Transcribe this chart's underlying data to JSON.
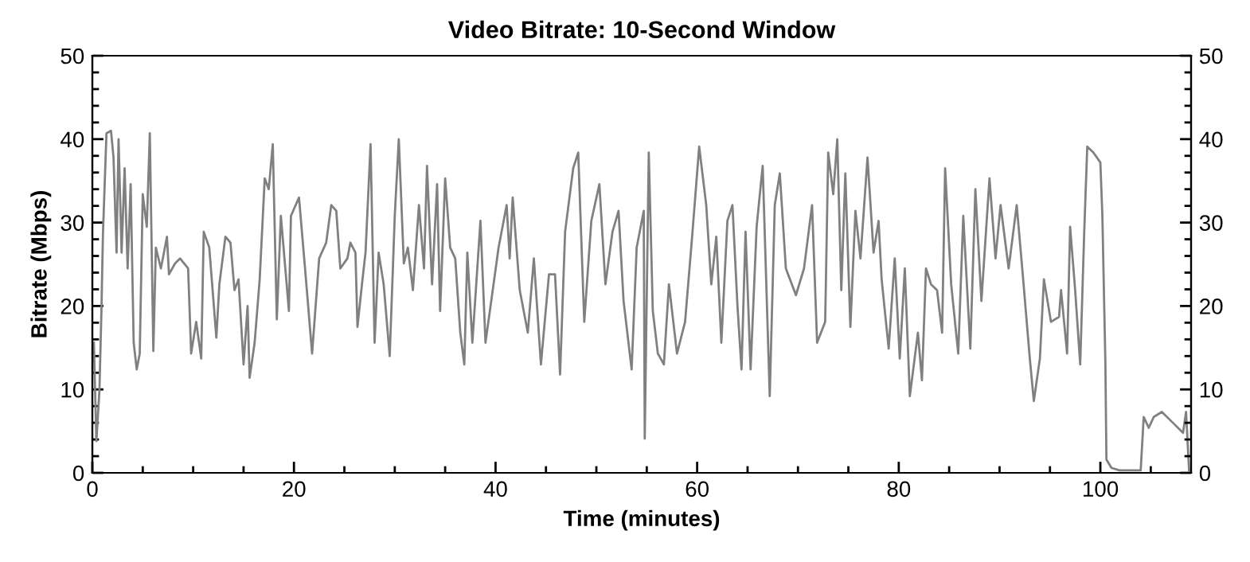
{
  "chart_data": {
    "type": "line",
    "title": "Video Bitrate: 10-Second Window",
    "xlabel": "Time (minutes)",
    "ylabel": "Bitrate (Mbps)",
    "x": [
      0.15,
      0.4,
      0.7,
      0.9,
      1.05,
      1.4,
      1.85,
      2.1,
      2.4,
      2.6,
      2.9,
      3.2,
      3.5,
      3.8,
      4.1,
      4.4,
      4.7,
      5,
      5.4,
      5.7,
      6.05,
      6.3,
      6.8,
      7.4,
      7.6,
      8.2,
      8.7,
      9.5,
      9.8,
      10.3,
      10.8,
      11.05,
      11.6,
      12.3,
      12.6,
      13.2,
      13.7,
      14.1,
      14.5,
      15,
      15.4,
      15.6,
      16.1,
      16.6,
      17.1,
      17.5,
      17.9,
      18.3,
      18.7,
      19.5,
      19.7,
      20.5,
      21.1,
      21.8,
      22.5,
      23.2,
      23.7,
      24.2,
      24.6,
      25.3,
      25.6,
      26.1,
      26.3,
      26.8,
      27.1,
      27.6,
      28,
      28.4,
      28.9,
      29.5,
      30,
      30.4,
      30.9,
      31.3,
      31.8,
      32.4,
      32.9,
      33.2,
      33.7,
      34.2,
      34.5,
      35,
      35.5,
      36,
      36.5,
      36.9,
      37.2,
      37.7,
      38.5,
      39,
      39.8,
      40.3,
      41.1,
      41.4,
      41.7,
      42.4,
      43.2,
      43.8,
      44.5,
      45.3,
      45.9,
      46.4,
      46.9,
      47.7,
      48.2,
      48.8,
      49.5,
      50.3,
      50.9,
      51.6,
      52.2,
      52.7,
      53.5,
      54,
      54.7,
      54.8,
      55.2,
      55.6,
      56.1,
      56.7,
      57.2,
      58,
      58.8,
      59.5,
      60.2,
      60.9,
      61.4,
      61.9,
      62.4,
      63,
      63.5,
      64,
      64.4,
      64.8,
      65.3,
      65.9,
      66.5,
      67.2,
      67.7,
      68.2,
      68.8,
      69.8,
      70.6,
      71.4,
      71.9,
      72.7,
      73,
      73.5,
      73.9,
      74.3,
      74.7,
      75.2,
      75.7,
      76.2,
      76.9,
      77.5,
      78,
      78.3,
      79,
      79.6,
      80.1,
      80.6,
      81.1,
      81.9,
      82.3,
      82.7,
      83.2,
      83.8,
      84.3,
      84.6,
      85.2,
      85.9,
      86.4,
      87.1,
      87.6,
      88.2,
      89,
      89.6,
      90.1,
      90.9,
      91.7,
      92.3,
      93,
      93.4,
      94,
      94.4,
      95.1,
      95.9,
      96.1,
      96.7,
      97,
      97.5,
      98,
      98.4,
      98.7,
      99.3,
      100,
      100.2,
      100.5,
      100.6,
      101.1,
      101.9,
      104,
      104.3,
      104.8,
      105.3,
      106.1,
      107.2,
      108.2,
      108.5,
      108.8
    ],
    "series": [
      {
        "color": "#808080",
        "values": [
          15.6,
          3.8,
          9.8,
          19.4,
          28.6,
          40.7,
          41,
          37.8,
          26.4,
          40,
          26.4,
          36.5,
          24.5,
          34.6,
          15.6,
          12.4,
          14.3,
          33.4,
          29.5,
          40.7,
          14.6,
          27,
          24.5,
          28.3,
          23.8,
          25.1,
          25.7,
          24.5,
          14.3,
          18.1,
          13.7,
          28.9,
          27,
          16.2,
          22.6,
          28.3,
          27.6,
          21.9,
          23.2,
          13,
          20,
          11.4,
          15.6,
          23.2,
          35.3,
          34,
          39.4,
          18.4,
          30.8,
          19.4,
          30.8,
          33,
          24.5,
          14.3,
          25.7,
          27.6,
          32.1,
          31.4,
          24.5,
          25.7,
          27.6,
          26.4,
          17.5,
          23.2,
          26.4,
          39.4,
          15.6,
          26.4,
          22.6,
          14,
          30.8,
          40,
          25.1,
          27,
          21.9,
          32.1,
          24.5,
          36.8,
          22.6,
          34.6,
          19.4,
          35.3,
          27,
          25.7,
          16.8,
          13,
          26.4,
          15.6,
          30.2,
          15.6,
          22.6,
          27,
          32.1,
          25.7,
          33,
          21.9,
          16.8,
          25.7,
          13,
          23.8,
          23.8,
          11.8,
          28.9,
          36.5,
          38.4,
          18.1,
          30.2,
          34.6,
          22.6,
          28.9,
          31.4,
          20.6,
          12.4,
          27,
          31.4,
          4.1,
          38.4,
          19.4,
          14.3,
          13,
          22.6,
          14.3,
          18.1,
          28.3,
          39.1,
          32.1,
          22.6,
          28.3,
          15.6,
          30.2,
          32.1,
          20,
          12.4,
          28.9,
          12.4,
          29.5,
          36.8,
          9.2,
          32.1,
          35.9,
          24.5,
          21.3,
          24.5,
          32.1,
          15.6,
          18.1,
          38.4,
          33.4,
          40,
          21.9,
          35.9,
          17.5,
          31.4,
          25.7,
          37.8,
          26.4,
          30.2,
          23.2,
          14.9,
          25.7,
          13.7,
          24.5,
          9.2,
          16.8,
          11.1,
          24.5,
          22.6,
          21.9,
          16.8,
          36.5,
          22.6,
          14.3,
          30.8,
          14.9,
          34,
          20.6,
          35.3,
          25.7,
          32.1,
          24.5,
          32.1,
          23.8,
          13.7,
          8.6,
          13.7,
          23.2,
          18.1,
          18.7,
          21.9,
          14.3,
          29.5,
          21.9,
          13,
          28.9,
          39.1,
          38.4,
          37.2,
          30.8,
          13,
          1.6,
          0.6,
          0.3,
          0.3,
          6.7,
          5.4,
          6.7,
          7.3,
          6,
          4.8,
          7.3,
          0.3
        ]
      }
    ],
    "xlim": [
      0,
      109
    ],
    "xticks": [
      0,
      {
        "value": 5,
        "label": null
      },
      {
        "value": 10,
        "label": null
      },
      {
        "value": 15,
        "label": null
      },
      20,
      {
        "value": 25,
        "label": null
      },
      {
        "value": 30,
        "label": null
      },
      {
        "value": 35,
        "label": null
      },
      40,
      {
        "value": 45,
        "label": null
      },
      {
        "value": 50,
        "label": null
      },
      {
        "value": 55,
        "label": null
      },
      60,
      {
        "value": 65,
        "label": null
      },
      {
        "value": 70,
        "label": null
      },
      {
        "value": 75,
        "label": null
      },
      80,
      {
        "value": 85,
        "label": null
      },
      {
        "value": 90,
        "label": null
      },
      {
        "value": 95,
        "label": null
      },
      100,
      {
        "value": 105,
        "label": null
      }
    ],
    "ylim": [
      0,
      50
    ],
    "yticks": [
      0,
      {
        "value": 2,
        "label": null
      },
      {
        "value": 4,
        "label": null
      },
      {
        "value": 6,
        "label": null
      },
      {
        "value": 8,
        "label": null
      },
      10,
      {
        "value": 12,
        "label": null
      },
      {
        "value": 14,
        "label": null
      },
      {
        "value": 16,
        "label": null
      },
      {
        "value": 18,
        "label": null
      },
      20,
      {
        "value": 22,
        "label": null
      },
      {
        "value": 24,
        "label": null
      },
      {
        "value": 26,
        "label": null
      },
      {
        "value": 28,
        "label": null
      },
      30,
      {
        "value": 32,
        "label": null
      },
      {
        "value": 34,
        "label": null
      },
      {
        "value": 36,
        "label": null
      },
      {
        "value": 38,
        "label": null
      },
      40,
      {
        "value": 42,
        "label": null
      },
      {
        "value": 44,
        "label": null
      },
      {
        "value": 46,
        "label": null
      },
      {
        "value": 48,
        "label": null
      },
      50
    ],
    "y2lim": [
      0,
      50
    ],
    "y2ticks": [
      0,
      {
        "value": 2,
        "label": null
      },
      {
        "value": 4,
        "label": null
      },
      {
        "value": 6,
        "label": null
      },
      {
        "value": 8,
        "label": null
      },
      10,
      {
        "value": 12,
        "label": null
      },
      {
        "value": 14,
        "label": null
      },
      {
        "value": 16,
        "label": null
      },
      {
        "value": 18,
        "label": null
      },
      20,
      {
        "value": 22,
        "label": null
      },
      {
        "value": 24,
        "label": null
      },
      {
        "value": 26,
        "label": null
      },
      {
        "value": 28,
        "label": null
      },
      30,
      {
        "value": 32,
        "label": null
      },
      {
        "value": 34,
        "label": null
      },
      {
        "value": 36,
        "label": null
      },
      {
        "value": 38,
        "label": null
      },
      40,
      {
        "value": 42,
        "label": null
      },
      {
        "value": 44,
        "label": null
      },
      {
        "value": 46,
        "label": null
      },
      {
        "value": 48,
        "label": null
      },
      50
    ],
    "grid": false,
    "marker": "none",
    "line_style": "solid"
  }
}
